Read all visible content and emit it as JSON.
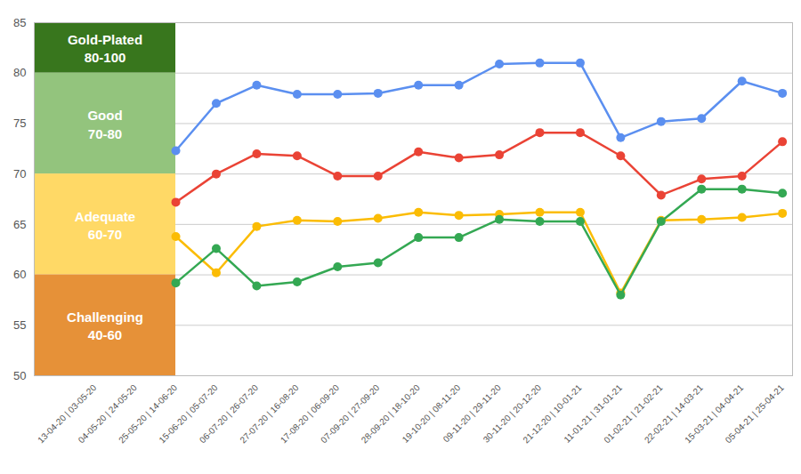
{
  "chart_data": {
    "type": "line",
    "categories": [
      "13-04-20 | 03-05-20",
      "04-05-20 | 24-05-20",
      "25-05-20 | 14-06-20",
      "15-06-20 | 05-07-20",
      "06-07-20 | 26-07-20",
      "27-07-20 | 16-08-20",
      "17-08-20 | 06-09-20",
      "07-09-20 | 27-09-20",
      "28-09-20 | 18-10-20",
      "19-10-20 | 08-11-20",
      "09-11-20 | 29-11-20",
      "30-11-20 | 20-12-20",
      "21-12-20 | 10-01-21",
      "11-01-21 | 31-01-21",
      "01-02-21 | 21-02-21",
      "22-02-21 | 14-03-21",
      "15-03-21 | 04-04-21",
      "05-04-21 | 25-04-21"
    ],
    "series": [
      {
        "color": "#5b8ff0",
        "marker": "circle",
        "values": [
          null,
          null,
          72.3,
          77,
          78.8,
          77.9,
          77.9,
          78,
          78.8,
          78.8,
          80.9,
          81,
          81,
          73.6,
          75.2,
          75.5,
          79.2,
          78
        ]
      },
      {
        "color": "#ea4335",
        "marker": "circle",
        "values": [
          null,
          null,
          67.2,
          70,
          72,
          71.8,
          69.8,
          69.8,
          72.2,
          71.6,
          71.9,
          74.1,
          74.1,
          71.8,
          67.9,
          69.5,
          69.8,
          73.2
        ]
      },
      {
        "color": "#fbbc04",
        "marker": "circle",
        "values": [
          null,
          null,
          63.8,
          60.2,
          64.8,
          65.4,
          65.3,
          65.6,
          66.2,
          65.9,
          66,
          66.2,
          66.2,
          58.2,
          65.4,
          65.5,
          65.7,
          66.1
        ]
      },
      {
        "color": "#34a853",
        "marker": "circle",
        "values": [
          null,
          null,
          59.2,
          62.6,
          58.9,
          59.3,
          60.8,
          61.2,
          63.7,
          63.7,
          65.5,
          65.3,
          65.3,
          58,
          65.3,
          68.5,
          68.5,
          68.1
        ]
      }
    ],
    "annotations": [
      {
        "text": [
          "Gold-Plated",
          "80-100"
        ],
        "y1": 80,
        "y2": 100,
        "color": "#38761d"
      },
      {
        "text": [
          "Good",
          "70-80"
        ],
        "y1": 70,
        "y2": 80,
        "color": "#93c47d"
      },
      {
        "text": [
          "Adequate",
          "60-70"
        ],
        "y1": 60,
        "y2": 70,
        "color": "#ffd966"
      },
      {
        "text": [
          "Challenging",
          "40-60"
        ],
        "y1": 40,
        "y2": 60,
        "color": "#e69138"
      }
    ],
    "ylim": [
      50,
      85
    ],
    "yticks": [
      50,
      55,
      60,
      65,
      70,
      75,
      80,
      85
    ],
    "grid": true
  }
}
